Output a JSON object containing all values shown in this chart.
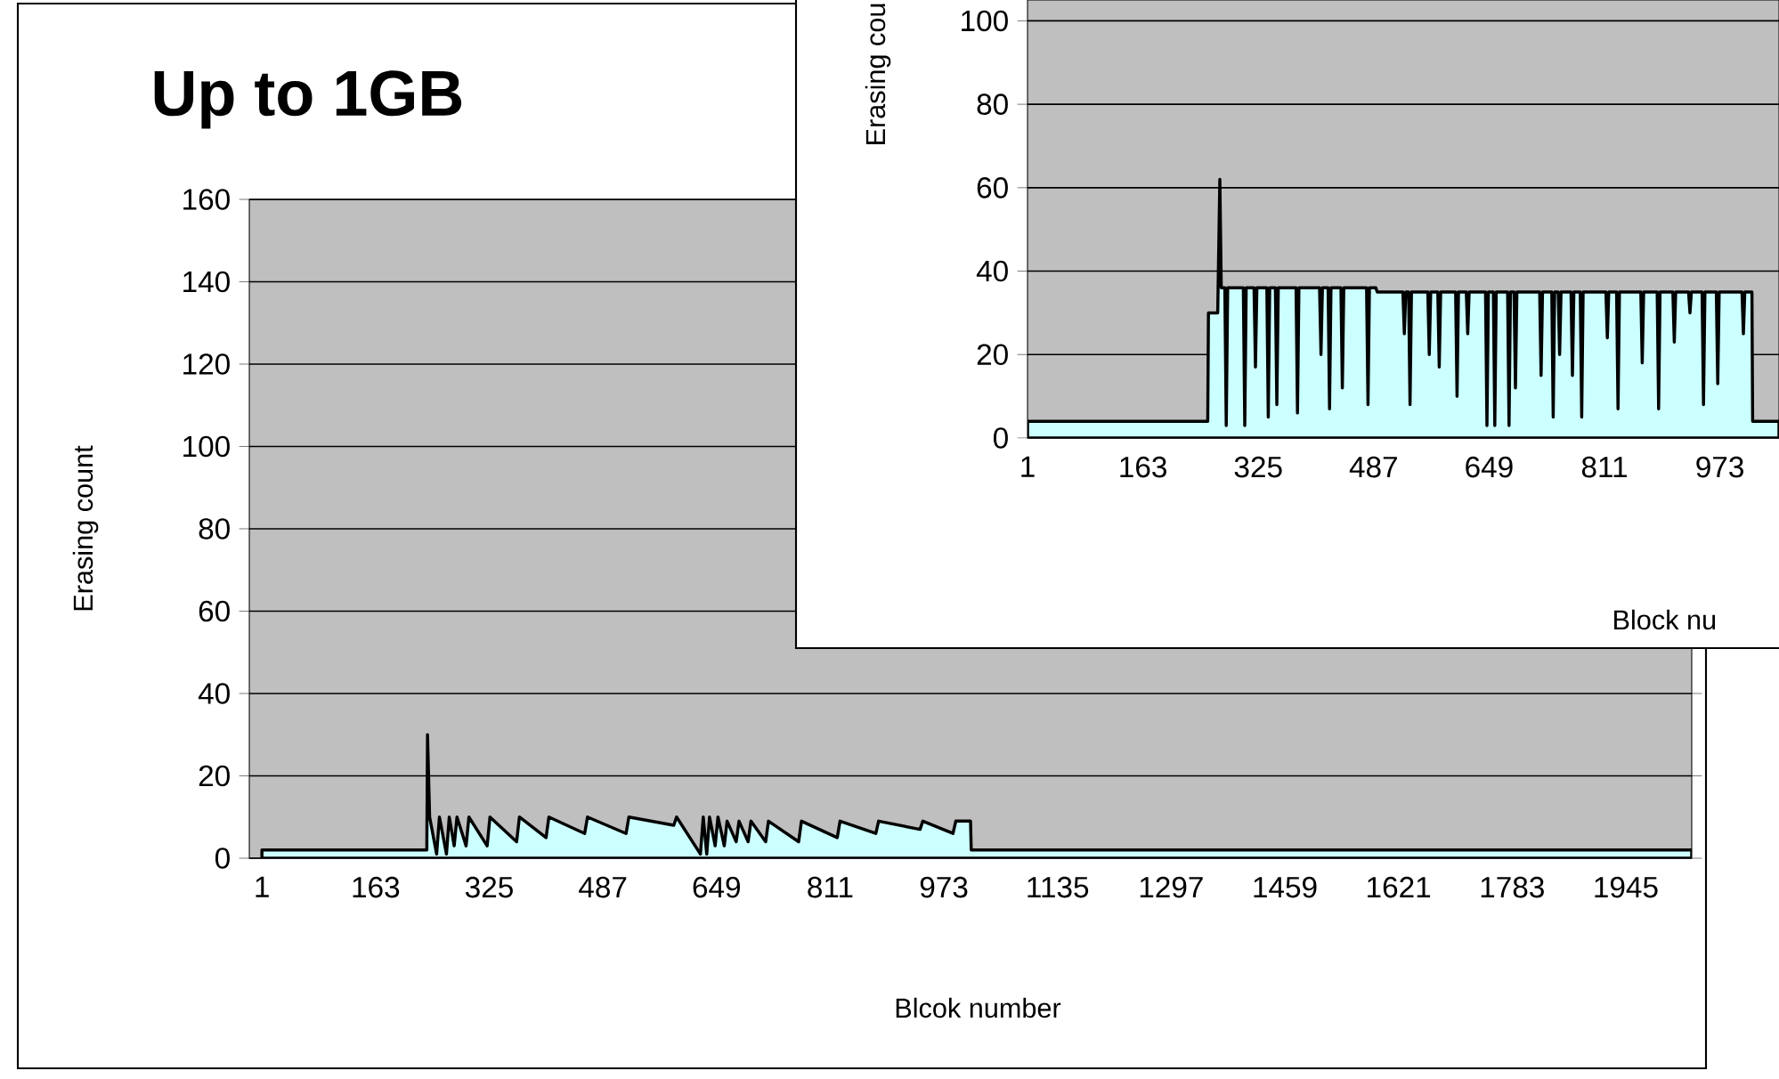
{
  "chart_data": [
    {
      "type": "area",
      "title": "Up to 1GB",
      "xlabel": "Blcok number",
      "ylabel": "Erasing count",
      "color": "#ccffff",
      "grid": "y",
      "xlim": [
        -17,
        2039
      ],
      "ylim": [
        0,
        160
      ],
      "xticks": [
        1,
        163,
        325,
        487,
        649,
        811,
        973,
        1135,
        1297,
        1459,
        1621,
        1783,
        1945
      ],
      "yticks": [
        0,
        20,
        40,
        60,
        80,
        100,
        120,
        140,
        160
      ],
      "x": [
        1,
        236,
        237,
        240,
        250,
        254,
        264,
        268,
        275,
        279,
        292,
        296,
        322,
        326,
        364,
        368,
        406,
        410,
        461,
        465,
        520,
        524,
        588,
        592,
        626,
        630,
        635,
        639,
        647,
        651,
        660,
        664,
        677,
        681,
        694,
        698,
        719,
        723,
        766,
        770,
        821,
        825,
        876,
        880,
        939,
        943,
        986,
        990,
        1011,
        1012,
        2039
      ],
      "values": [
        2,
        2,
        30,
        10,
        1,
        10,
        1,
        10,
        3,
        10,
        3,
        10,
        3,
        10,
        4,
        10,
        5,
        10,
        6,
        10,
        6,
        10,
        8,
        10,
        1,
        10,
        1,
        10,
        3,
        10,
        3,
        9,
        4,
        9,
        4,
        9,
        4,
        9,
        4,
        9,
        5,
        9,
        6,
        9,
        7,
        9,
        6,
        9,
        9,
        2,
        2
      ]
    },
    {
      "type": "area",
      "xlabel": "Block nu",
      "ylabel": "Erasing cou",
      "color": "#ccffff",
      "grid": "y",
      "xlim": [
        1,
        1056
      ],
      "ylim": [
        0,
        105
      ],
      "xticks": [
        1,
        163,
        325,
        487,
        649,
        811,
        973
      ],
      "yticks": [
        0,
        20,
        40,
        60,
        80,
        100
      ],
      "x": [
        1,
        254,
        255,
        268,
        271,
        273,
        278,
        280,
        282,
        304,
        306,
        308,
        319,
        321,
        323,
        337,
        339,
        341,
        349,
        351,
        353,
        378,
        380,
        382,
        411,
        413,
        415,
        423,
        425,
        427,
        441,
        443,
        445,
        477,
        479,
        481,
        490,
        492,
        528,
        530,
        532,
        536,
        538,
        540,
        563,
        565,
        567,
        577,
        579,
        581,
        602,
        604,
        606,
        617,
        619,
        621,
        644,
        646,
        648,
        655,
        657,
        659,
        675,
        677,
        679,
        684,
        686,
        688,
        720,
        722,
        724,
        737,
        739,
        741,
        746,
        748,
        750,
        764,
        766,
        768,
        777,
        779,
        781,
        813,
        815,
        817,
        828,
        830,
        832,
        862,
        864,
        866,
        885,
        887,
        889,
        907,
        909,
        911,
        929,
        931,
        933,
        948,
        950,
        952,
        968,
        970,
        972,
        1004,
        1006,
        1008,
        1018,
        1019,
        1056
      ],
      "values": [
        4,
        4,
        30,
        30,
        62,
        36,
        36,
        3,
        36,
        36,
        3,
        36,
        36,
        17,
        36,
        36,
        5,
        36,
        36,
        8,
        36,
        36,
        6,
        36,
        36,
        20,
        36,
        36,
        7,
        36,
        36,
        12,
        36,
        36,
        8,
        36,
        36,
        35,
        35,
        25,
        35,
        35,
        8,
        35,
        35,
        20,
        35,
        35,
        17,
        35,
        35,
        10,
        35,
        35,
        25,
        35,
        35,
        3,
        35,
        35,
        3,
        35,
        35,
        3,
        35,
        35,
        12,
        35,
        35,
        15,
        35,
        35,
        5,
        35,
        35,
        20,
        35,
        35,
        15,
        35,
        35,
        5,
        35,
        35,
        24,
        35,
        35,
        7,
        35,
        35,
        18,
        35,
        35,
        7,
        35,
        35,
        23,
        35,
        35,
        30,
        35,
        35,
        8,
        35,
        35,
        13,
        35,
        35,
        25,
        35,
        35,
        4,
        4
      ]
    }
  ]
}
